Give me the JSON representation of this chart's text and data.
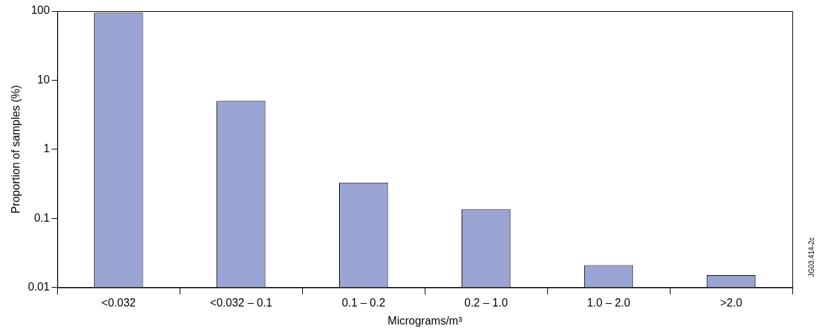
{
  "chart_data": {
    "type": "bar",
    "xlabel": "Micrograms/m³",
    "ylabel": "Proportion of samples (%)",
    "categories": [
      "<0.032",
      "<0.032 – 0.1",
      "0.1 – 0.2",
      "0.2 – 1.0",
      "1.0 – 2.0",
      ">2.0"
    ],
    "values": [
      95,
      5,
      0.33,
      0.135,
      0.021,
      0.015
    ],
    "color": "#9ba5d3",
    "log": true,
    "ylim": [
      0.01,
      100
    ],
    "yticks": [
      0.01,
      0.1,
      1,
      10,
      100
    ],
    "grid": false,
    "legend": false,
    "annotations": [
      "JG03.414-2c"
    ]
  }
}
